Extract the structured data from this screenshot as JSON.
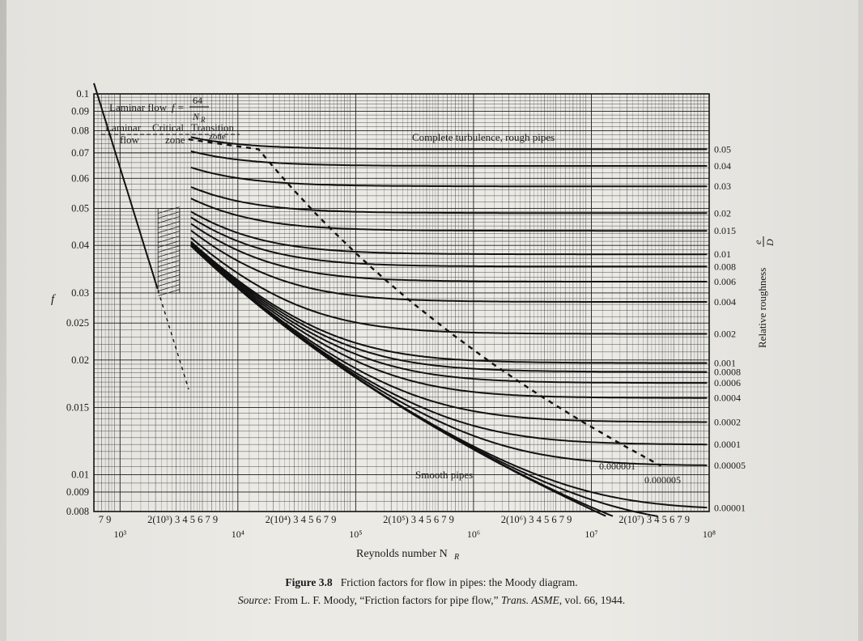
{
  "chart_data": {
    "type": "line",
    "title": "Moody diagram",
    "xlabel": "Reynolds number N_R",
    "ylabel": "f",
    "right_axis_label": "Relative roughness e/D",
    "xscale": "log",
    "yscale": "log",
    "xlim": [
      600,
      100000000
    ],
    "ylim": [
      0.008,
      0.1
    ],
    "y_ticks": [
      "0.1",
      "0.09",
      "0.08",
      "0.07",
      "0.06",
      "0.05",
      "0.04",
      "0.03",
      "0.025",
      "0.02",
      "0.015",
      "0.01",
      "0.009",
      "0.008"
    ],
    "x_tick_rows": [
      {
        "text": "7 9",
        "decade": 2
      },
      {
        "text": "2(10³) 3 4 5 6 7 9",
        "decade": 3
      },
      {
        "text": "2(10⁴) 3 4 5 6 7 9",
        "decade": 4
      },
      {
        "text": "2(10⁵) 3 4 5 6 7 9",
        "decade": 5
      },
      {
        "text": "2(10⁶) 3 4 5 6 7 9",
        "decade": 6
      },
      {
        "text": "2(10⁷) 3 4 5 6 7 9",
        "decade": 7
      }
    ],
    "x_decade_labels": [
      {
        "text": "10³",
        "exp": 3
      },
      {
        "text": "10⁴",
        "exp": 4
      },
      {
        "text": "10⁵",
        "exp": 5
      },
      {
        "text": "10⁶",
        "exp": 6
      },
      {
        "text": "10⁷",
        "exp": 7
      },
      {
        "text": "10⁸",
        "exp": 8
      }
    ],
    "roughness_series": [
      {
        "label": "0.05",
        "value": 0.05
      },
      {
        "label": "0.04",
        "value": 0.04
      },
      {
        "label": "0.03",
        "value": 0.03
      },
      {
        "label": "0.02",
        "value": 0.02
      },
      {
        "label": "0.015",
        "value": 0.015
      },
      {
        "label": "0.01",
        "value": 0.01
      },
      {
        "label": "0.008",
        "value": 0.008
      },
      {
        "label": "0.006",
        "value": 0.006
      },
      {
        "label": "0.004",
        "value": 0.004
      },
      {
        "label": "0.002",
        "value": 0.002
      },
      {
        "label": "0.001",
        "value": 0.001
      },
      {
        "label": "0.0008",
        "value": 0.0008
      },
      {
        "label": "0.0006",
        "value": 0.0006
      },
      {
        "label": "0.0004",
        "value": 0.0004
      },
      {
        "label": "0.0002",
        "value": 0.0002
      },
      {
        "label": "0.0001",
        "value": 0.0001
      },
      {
        "label": "0.00005",
        "value": 5e-05
      },
      {
        "label": "0.00001",
        "value": 1e-05
      },
      {
        "label": "0.000005",
        "value": 5e-06
      },
      {
        "label": "0.000001",
        "value": 1e-06
      }
    ],
    "annotations": {
      "laminar_flow": "Laminar flow",
      "laminar_formula_lhs": "f =",
      "laminar_formula_num": "64",
      "laminar_formula_den": "N",
      "laminar_formula_den_sub": "R",
      "laminar_zone_1": "Laminar",
      "laminar_zone_2": "flow",
      "critical_zone_1": "Critical",
      "critical_zone_2": "zone",
      "transition_zone_1": "Transition",
      "transition_zone_2": "zone",
      "complete_turbulence": "Complete turbulence, rough pipes",
      "smooth_pipes": "Smooth pipes",
      "rough_label_000001": "0.000001",
      "rough_label_000005": "0.000005",
      "x_label_text": "Reynolds number N",
      "x_label_sub": "R",
      "y_label": "f",
      "right_label_text": "Relative roughness",
      "right_label_num": "e",
      "right_label_den": "D"
    }
  },
  "caption": {
    "figure_number": "Figure 3.8",
    "title": "Friction factors for flow in pipes: the Moody diagram.",
    "source_label": "Source:",
    "source_text_1": "From L. F. Moody, “Friction factors for pipe flow,”",
    "source_journal": "Trans. ASME",
    "source_text_2": ", vol. 66, 1944."
  }
}
